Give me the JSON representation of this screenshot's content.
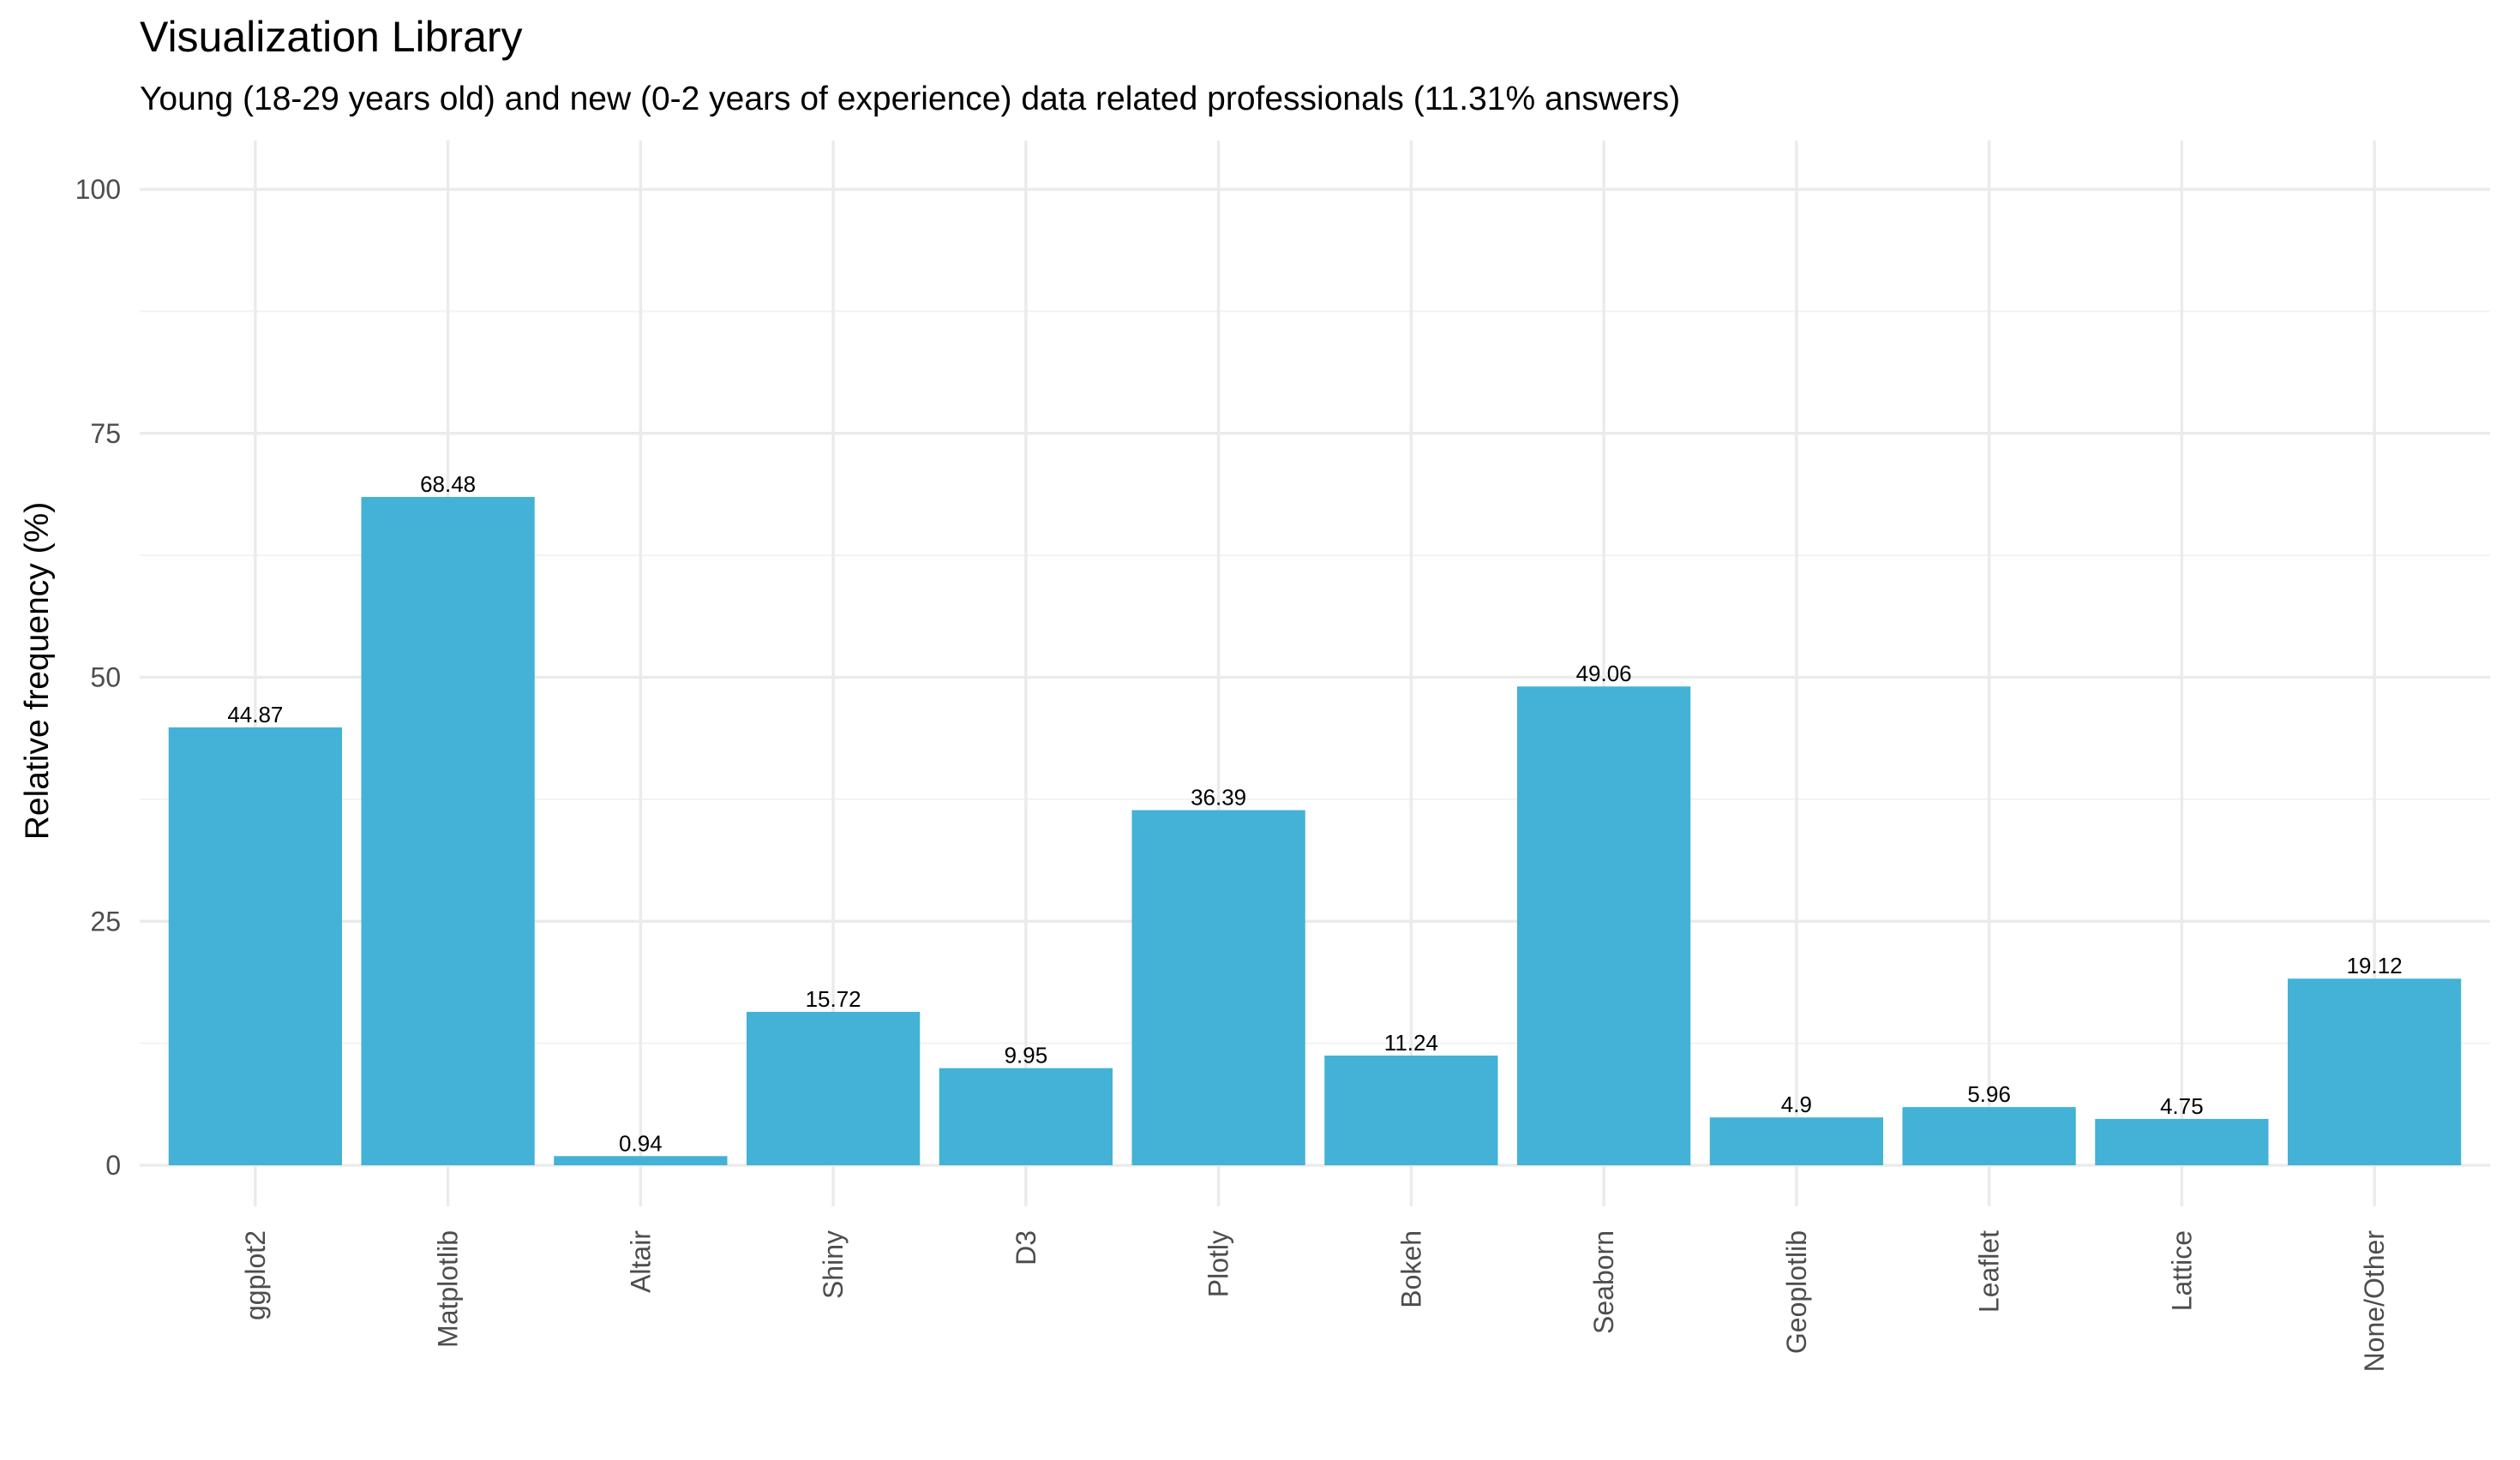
{
  "chart_data": {
    "type": "bar",
    "title": "Visualization Library",
    "subtitle": "Young (18-29 years old) and new (0-2 years of experience) data related professionals (11.31% answers)",
    "xlabel": "",
    "ylabel": "Relative frequency (%)",
    "categories": [
      "ggplot2",
      "Matplotlib",
      "Altair",
      "Shiny",
      "D3",
      "Plotly",
      "Bokeh",
      "Seaborn",
      "Geoplotlib",
      "Leaflet",
      "Lattice",
      "None/Other"
    ],
    "values": [
      44.87,
      68.48,
      0.94,
      15.72,
      9.95,
      36.39,
      11.24,
      49.06,
      4.9,
      5.96,
      4.75,
      19.12
    ],
    "data_labels": [
      "44.87",
      "68.48",
      "0.94",
      "15.72",
      "9.95",
      "36.39",
      "11.24",
      "49.06",
      "4.9",
      "5.96",
      "4.75",
      "19.12"
    ],
    "ylim": [
      0,
      100
    ],
    "yticks": [
      0,
      25,
      50,
      75,
      100
    ],
    "grid": true,
    "legend": "none",
    "bar_color": "#43b2d6"
  }
}
